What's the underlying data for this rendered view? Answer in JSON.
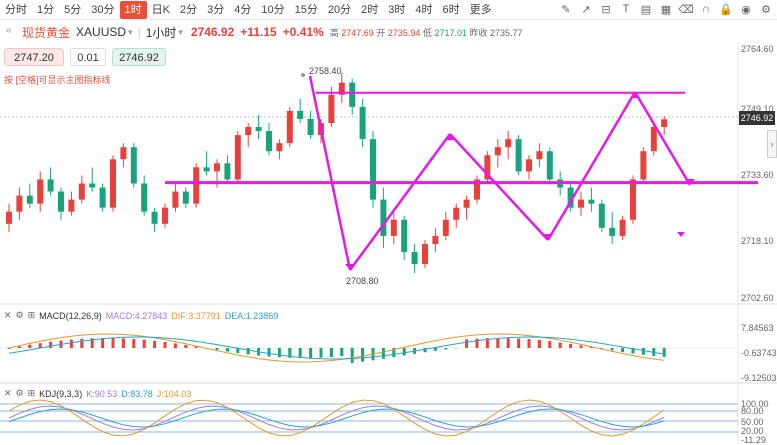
{
  "toolbar": {
    "timeframes": [
      "分时",
      "1分",
      "5分",
      "30分",
      "1时",
      "日K",
      "2分",
      "3分",
      "4分",
      "10分",
      "15分",
      "20分",
      "2时",
      "3时",
      "4时",
      "6时",
      "更多"
    ],
    "active": "1时",
    "more_label": "更多"
  },
  "header": {
    "name": "现货黄金",
    "symbol": "XAUUSD",
    "interval": "1小时",
    "price": "2746.92",
    "change": "+11.15",
    "change_pct": "+0.41%",
    "high_label": "高",
    "high": "2747.69",
    "low_label": "开",
    "low": "2735.94",
    "open_label": "低",
    "open": "2717.01",
    "prev_label": "昨收",
    "prev": "2735.77"
  },
  "quote": {
    "bid": "2747.20",
    "lot": "0.01",
    "ask": "2746.92",
    "note": "按 [空格]可显示主图指标线"
  },
  "main_axis": {
    "ticks": [
      "2764.60",
      "2749.10",
      "2733.60",
      "2718.10",
      "2702.60"
    ],
    "last_price": "2746.92",
    "high_mark": "2758.40",
    "low_mark": "2708.80"
  },
  "macd": {
    "title": "MACD(12,26,9)",
    "macd": "MACD:4.27843",
    "dif": "DIF:3.37791",
    "dea": "DEA:1.23869",
    "ticks": [
      "7.84563",
      "-0.63743",
      "-9.12503"
    ]
  },
  "kdj": {
    "title": "KDJ(9,3,3)",
    "k": "K:90.53",
    "d": "D:83.78",
    "j": "J:104.03",
    "ticks": [
      "100.00",
      "80.00",
      "50.00",
      "20.00",
      "-11.29"
    ]
  },
  "colors": {
    "up": "#e8403a",
    "down": "#1aa37a",
    "draw": "#e619e6",
    "active": "#e8503a"
  },
  "icons": [
    "pencil-icon",
    "trend-line-icon",
    "ruler-icon",
    "text-icon",
    "layers-icon",
    "grid-icon",
    "eraser-icon",
    "magnet-icon",
    "lock-icon",
    "eye-icon",
    "settings-icon"
  ]
}
